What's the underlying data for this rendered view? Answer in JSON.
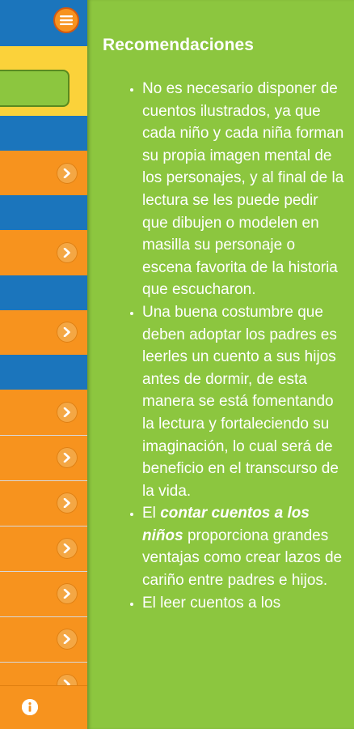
{
  "content": {
    "heading": "Recomendaciones",
    "items": [
      {
        "text": "No es necesario disponer de cuentos ilustrados, ya que cada niño y cada niña forman su propia imagen mental de los personajes, y al final de la lectura se les puede pedir que dibujen o modelen en masilla su personaje o escena favorita de la historia que escucharon."
      },
      {
        "text": "Una buena costumbre que deben adoptar los padres es leerles un cuento a sus hijos antes de dormir, de esta manera se está fomentando la lectura y fortaleciendo su imaginación, lo cual será de beneficio en el transcurso de la vida."
      },
      {
        "prefix": "El ",
        "emphasis": "contar cuentos a los niños",
        "suffix": " proporciona grandes ventajas como crear lazos de cariño entre padres e hijos."
      },
      {
        "text": "El leer cuentos a los"
      }
    ]
  },
  "drawer": {
    "menu_icon": "hamburger-menu-icon",
    "chevron_icon": "chevron-right-icon",
    "info_icon": "info-icon"
  },
  "colors": {
    "green": "#8cc63f",
    "orange": "#f7931e",
    "blue": "#1b75bc",
    "yellow": "#fbd23a"
  }
}
